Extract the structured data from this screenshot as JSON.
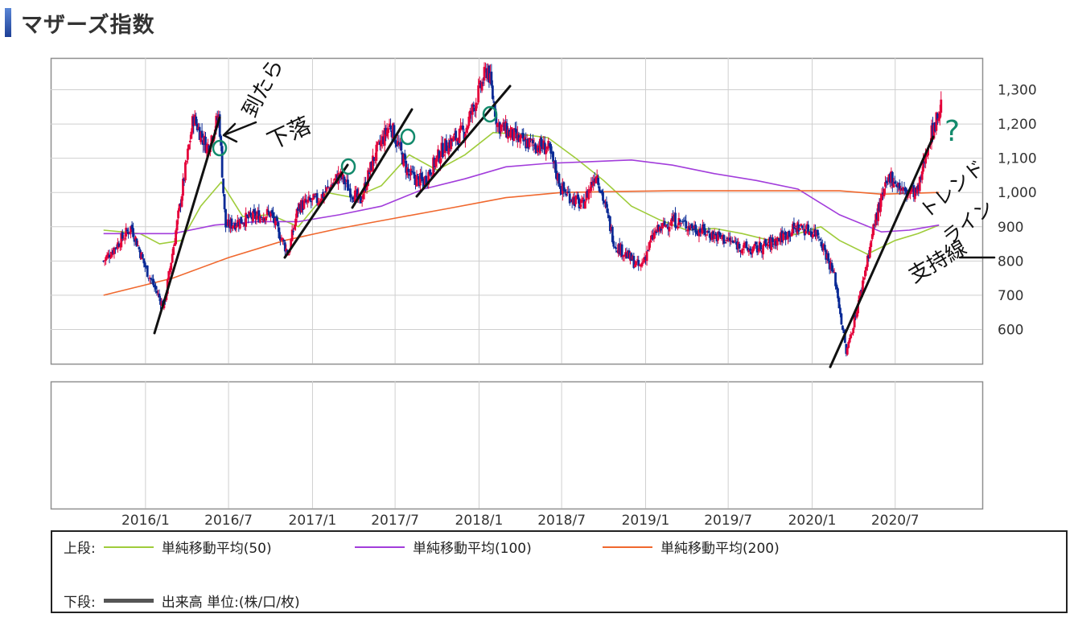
{
  "page_title": "マザーズ指数",
  "colors": {
    "up": "#e4003a",
    "down": "#0a2a96",
    "ma50": "#9fcc3b",
    "ma100": "#a23ddb",
    "ma200": "#f0682e",
    "annotation_ink": "#111111",
    "annotation_green": "#138a6c"
  },
  "chart_data": {
    "type": "candlestick",
    "title": "マザーズ指数",
    "x_tick_labels": [
      "2016/1",
      "2016/7",
      "2017/1",
      "2017/7",
      "2018/1",
      "2018/7",
      "2019/1",
      "2019/7",
      "2020/1",
      "2020/7"
    ],
    "y_tick_values": [
      600,
      700,
      800,
      900,
      1000,
      1100,
      1200,
      1300
    ],
    "y_tick_labels": [
      "600",
      "700",
      "800",
      "900",
      "1,000",
      "1,100",
      "1,200",
      "1,300"
    ],
    "ylim": [
      510,
      1395
    ],
    "grid": true,
    "price_path": [
      {
        "date": "2015/10/01",
        "close": 800
      },
      {
        "date": "2015/11/01",
        "close": 850
      },
      {
        "date": "2015/12/01",
        "close": 900
      },
      {
        "date": "2016/01/01",
        "close": 780
      },
      {
        "date": "2016/02/10",
        "close": 665
      },
      {
        "date": "2016/03/15",
        "close": 950
      },
      {
        "date": "2016/04/15",
        "close": 1220
      },
      {
        "date": "2016/05/15",
        "close": 1130
      },
      {
        "date": "2016/06/10",
        "close": 1225
      },
      {
        "date": "2016/06/24",
        "close": 900
      },
      {
        "date": "2016/08/01",
        "close": 920
      },
      {
        "date": "2016/10/01",
        "close": 940
      },
      {
        "date": "2016/11/09",
        "close": 820
      },
      {
        "date": "2016/12/01",
        "close": 960
      },
      {
        "date": "2017/01/15",
        "close": 980
      },
      {
        "date": "2017/03/01",
        "close": 1050
      },
      {
        "date": "2017/04/15",
        "close": 970
      },
      {
        "date": "2017/05/15",
        "close": 1100
      },
      {
        "date": "2017/06/20",
        "close": 1200
      },
      {
        "date": "2017/08/01",
        "close": 1050
      },
      {
        "date": "2017/09/01",
        "close": 1030
      },
      {
        "date": "2017/10/15",
        "close": 1130
      },
      {
        "date": "2017/12/01",
        "close": 1180
      },
      {
        "date": "2018/01/20",
        "close": 1365
      },
      {
        "date": "2018/02/10",
        "close": 1200
      },
      {
        "date": "2018/04/01",
        "close": 1150
      },
      {
        "date": "2018/06/01",
        "close": 1130
      },
      {
        "date": "2018/07/01",
        "close": 1010
      },
      {
        "date": "2018/08/15",
        "close": 960
      },
      {
        "date": "2018/09/15",
        "close": 1060
      },
      {
        "date": "2018/10/25",
        "close": 850
      },
      {
        "date": "2018/12/20",
        "close": 780
      },
      {
        "date": "2019/01/20",
        "close": 880
      },
      {
        "date": "2019/03/01",
        "close": 920
      },
      {
        "date": "2019/05/01",
        "close": 890
      },
      {
        "date": "2019/07/01",
        "close": 860
      },
      {
        "date": "2019/08/20",
        "close": 830
      },
      {
        "date": "2019/10/01",
        "close": 850
      },
      {
        "date": "2019/12/01",
        "close": 900
      },
      {
        "date": "2020/01/15",
        "close": 880
      },
      {
        "date": "2020/02/20",
        "close": 750
      },
      {
        "date": "2020/03/16",
        "close": 530
      },
      {
        "date": "2020/04/15",
        "close": 700
      },
      {
        "date": "2020/05/20",
        "close": 930
      },
      {
        "date": "2020/06/20",
        "close": 1050
      },
      {
        "date": "2020/07/20",
        "close": 1000
      },
      {
        "date": "2020/08/20",
        "close": 1000
      },
      {
        "date": "2020/09/10",
        "close": 1140
      },
      {
        "date": "2020/10/12",
        "close": 1260
      }
    ],
    "series": [
      {
        "name": "単純移動平均(50)",
        "color": "#9fcc3b",
        "points": [
          {
            "date": "2015/10/01",
            "value": 890
          },
          {
            "date": "2015/12/20",
            "value": 880
          },
          {
            "date": "2016/02/01",
            "value": 850
          },
          {
            "date": "2016/03/20",
            "value": 860
          },
          {
            "date": "2016/05/01",
            "value": 960
          },
          {
            "date": "2016/06/15",
            "value": 1030
          },
          {
            "date": "2016/08/01",
            "value": 930
          },
          {
            "date": "2016/10/01",
            "value": 935
          },
          {
            "date": "2016/12/01",
            "value": 900
          },
          {
            "date": "2017/02/01",
            "value": 1000
          },
          {
            "date": "2017/04/01",
            "value": 985
          },
          {
            "date": "2017/06/01",
            "value": 1020
          },
          {
            "date": "2017/08/01",
            "value": 1110
          },
          {
            "date": "2017/10/01",
            "value": 1065
          },
          {
            "date": "2017/12/01",
            "value": 1110
          },
          {
            "date": "2018/02/01",
            "value": 1175
          },
          {
            "date": "2018/04/01",
            "value": 1170
          },
          {
            "date": "2018/06/01",
            "value": 1160
          },
          {
            "date": "2018/08/01",
            "value": 1100
          },
          {
            "date": "2018/10/01",
            "value": 1035
          },
          {
            "date": "2018/12/01",
            "value": 960
          },
          {
            "date": "2019/02/01",
            "value": 920
          },
          {
            "date": "2019/04/01",
            "value": 890
          },
          {
            "date": "2019/06/01",
            "value": 895
          },
          {
            "date": "2019/08/01",
            "value": 880
          },
          {
            "date": "2019/10/01",
            "value": 860
          },
          {
            "date": "2019/12/01",
            "value": 880
          },
          {
            "date": "2020/01/20",
            "value": 900
          },
          {
            "date": "2020/03/01",
            "value": 860
          },
          {
            "date": "2020/05/01",
            "value": 820
          },
          {
            "date": "2020/07/01",
            "value": 860
          },
          {
            "date": "2020/08/20",
            "value": 880
          },
          {
            "date": "2020/10/05",
            "value": 905
          }
        ]
      },
      {
        "name": "単純移動平均(100)",
        "color": "#a23ddb",
        "points": [
          {
            "date": "2015/10/01",
            "value": 880
          },
          {
            "date": "2016/03/01",
            "value": 880
          },
          {
            "date": "2016/06/01",
            "value": 905
          },
          {
            "date": "2016/09/01",
            "value": 915
          },
          {
            "date": "2016/12/01",
            "value": 915
          },
          {
            "date": "2017/03/01",
            "value": 935
          },
          {
            "date": "2017/06/01",
            "value": 960
          },
          {
            "date": "2017/09/01",
            "value": 1010
          },
          {
            "date": "2017/12/01",
            "value": 1040
          },
          {
            "date": "2018/03/01",
            "value": 1075
          },
          {
            "date": "2018/06/01",
            "value": 1085
          },
          {
            "date": "2018/09/01",
            "value": 1090
          },
          {
            "date": "2018/12/01",
            "value": 1095
          },
          {
            "date": "2019/03/01",
            "value": 1080
          },
          {
            "date": "2019/06/01",
            "value": 1055
          },
          {
            "date": "2019/09/01",
            "value": 1035
          },
          {
            "date": "2019/12/01",
            "value": 1010
          },
          {
            "date": "2020/03/01",
            "value": 935
          },
          {
            "date": "2020/06/01",
            "value": 885
          },
          {
            "date": "2020/08/01",
            "value": 890
          },
          {
            "date": "2020/10/05",
            "value": 905
          }
        ]
      },
      {
        "name": "単純移動平均(200)",
        "color": "#f0682e",
        "points": [
          {
            "date": "2015/10/01",
            "value": 700
          },
          {
            "date": "2016/03/01",
            "value": 750
          },
          {
            "date": "2016/07/01",
            "value": 810
          },
          {
            "date": "2016/11/01",
            "value": 860
          },
          {
            "date": "2017/03/01",
            "value": 895
          },
          {
            "date": "2017/07/01",
            "value": 925
          },
          {
            "date": "2017/11/01",
            "value": 955
          },
          {
            "date": "2018/03/01",
            "value": 985
          },
          {
            "date": "2018/07/01",
            "value": 1000
          },
          {
            "date": "2018/11/01",
            "value": 1003
          },
          {
            "date": "2019/03/01",
            "value": 1005
          },
          {
            "date": "2019/07/01",
            "value": 1005
          },
          {
            "date": "2019/11/01",
            "value": 1005
          },
          {
            "date": "2020/03/01",
            "value": 1005
          },
          {
            "date": "2020/06/01",
            "value": 995
          },
          {
            "date": "2020/10/05",
            "value": 1000
          }
        ]
      }
    ]
  },
  "annotations": {
    "note_1": "到たら",
    "note_2": "下落",
    "note_trend_1": "トレンド",
    "note_trend_2": "ライン",
    "note_trend_3": "支持線",
    "question_mark": "?"
  },
  "legend": {
    "upper_label": "上段:",
    "ma50_label": "単純移動平均(50)",
    "ma100_label": "単純移動平均(100)",
    "ma200_label": "単純移動平均(200)",
    "lower_label": "下段:",
    "volume_label": "出来高 単位:(株/口/枚)"
  }
}
